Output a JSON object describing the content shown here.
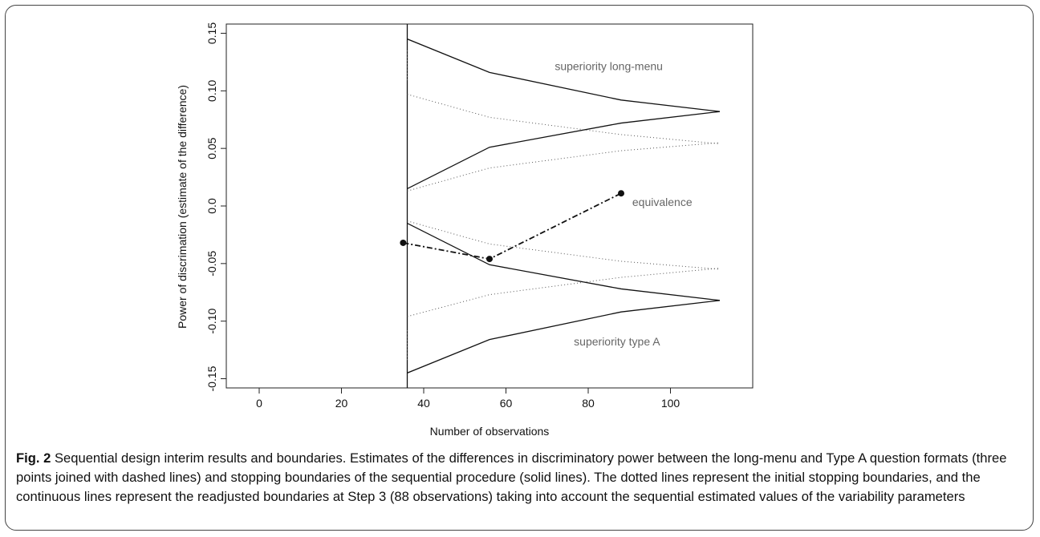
{
  "chart_data": {
    "type": "line",
    "title": "",
    "xlabel": "Number of observations",
    "ylabel": "Power of discrimation (estimate of the difference)",
    "xlim": [
      -8,
      120
    ],
    "ylim": [
      -0.158,
      0.158
    ],
    "x_ticks": [
      0,
      20,
      40,
      60,
      80,
      100
    ],
    "x_tick_labels": [
      "0",
      "20",
      "40",
      "60",
      "80",
      "100"
    ],
    "y_ticks": [
      -0.15,
      -0.1,
      -0.05,
      0.0,
      0.05,
      0.1,
      0.15
    ],
    "y_tick_labels": [
      "-0.15",
      "-0.10",
      "-0.05",
      "0.0",
      "0.05",
      "0.10",
      "0.15"
    ],
    "grid": false,
    "legend": "none",
    "annotations": [
      {
        "text": "superiority long-menu",
        "x": 85,
        "y": 0.118
      },
      {
        "text": "equivalence",
        "x": 98,
        "y": 0.0
      },
      {
        "text": "superiority type A",
        "x": 87,
        "y": -0.121
      }
    ],
    "series": [
      {
        "style": "solid",
        "x": [
          36,
          36
        ],
        "y": [
          -0.158,
          0.158
        ]
      },
      {
        "style": "solid",
        "x": [
          36,
          56,
          88,
          112
        ],
        "y": [
          0.145,
          0.116,
          0.092,
          0.082
        ]
      },
      {
        "style": "solid",
        "x": [
          36,
          56,
          88,
          112
        ],
        "y": [
          0.015,
          0.051,
          0.072,
          0.082
        ]
      },
      {
        "style": "solid",
        "x": [
          36,
          56,
          88,
          112
        ],
        "y": [
          -0.015,
          -0.051,
          -0.072,
          -0.082
        ]
      },
      {
        "style": "solid",
        "x": [
          36,
          56,
          88,
          112
        ],
        "y": [
          -0.145,
          -0.116,
          -0.092,
          -0.082
        ]
      },
      {
        "style": "dotted",
        "x": [
          36,
          36
        ],
        "y": [
          0.135,
          0.108
        ]
      },
      {
        "style": "dotted",
        "x": [
          36,
          56,
          88,
          112
        ],
        "y": [
          0.097,
          0.077,
          0.062,
          0.054
        ]
      },
      {
        "style": "dotted",
        "x": [
          36,
          56,
          88,
          112
        ],
        "y": [
          0.013,
          0.033,
          0.048,
          0.055
        ]
      },
      {
        "style": "dotted",
        "x": [
          36,
          56,
          88,
          112
        ],
        "y": [
          -0.013,
          -0.033,
          -0.048,
          -0.055
        ]
      },
      {
        "style": "dotted",
        "x": [
          36,
          56,
          88,
          112
        ],
        "y": [
          -0.096,
          -0.077,
          -0.062,
          -0.054
        ]
      },
      {
        "style": "dotted",
        "x": [
          36,
          36
        ],
        "y": [
          -0.108,
          -0.135
        ]
      },
      {
        "style": "dashdot",
        "markers": true,
        "x": [
          35,
          56,
          88
        ],
        "y": [
          -0.032,
          -0.046,
          0.011
        ]
      }
    ]
  },
  "caption": {
    "fig_label": "Fig. 2",
    "text": " Sequential design interim results and boundaries. Estimates of the differences in discriminatory power between the long-menu and Type A question formats (three points joined with dashed lines) and stopping boundaries of the sequential procedure (solid lines). The dotted lines represent the initial stopping boundaries, and the continuous lines represent the readjusted boundaries at Step 3 (88 observations) taking into account the sequential estimated values of the variability parameters"
  }
}
